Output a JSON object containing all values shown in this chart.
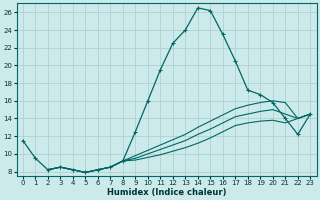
{
  "xlabel": "Humidex (Indice chaleur)",
  "bg_color": "#cceaea",
  "grid_color": "#aacccc",
  "line_color": "#006666",
  "xlim": [
    -0.5,
    23.5
  ],
  "ylim": [
    7.5,
    27
  ],
  "xticks": [
    0,
    1,
    2,
    3,
    4,
    5,
    6,
    7,
    8,
    9,
    10,
    11,
    12,
    13,
    14,
    15,
    16,
    17,
    18,
    19,
    20,
    21,
    22,
    23
  ],
  "yticks": [
    8,
    10,
    12,
    14,
    16,
    18,
    20,
    22,
    24,
    26
  ],
  "main_curve_x": [
    0,
    1,
    2,
    3,
    4,
    5,
    6,
    7,
    8,
    9,
    10,
    11,
    12,
    13,
    14,
    15,
    16,
    17,
    18,
    19,
    20,
    21,
    22,
    23
  ],
  "main_curve_y": [
    11.5,
    9.5,
    8.2,
    8.5,
    8.2,
    7.9,
    8.2,
    8.5,
    9.2,
    12.5,
    16.0,
    19.5,
    22.5,
    24.0,
    26.5,
    26.2,
    23.5,
    20.5,
    17.2,
    16.7,
    15.8,
    14.0,
    12.2,
    14.5
  ],
  "line2_x": [
    2,
    3,
    4,
    5,
    6,
    7,
    8,
    9,
    10,
    11,
    12,
    13,
    14,
    15,
    16,
    17,
    18,
    19,
    20,
    21,
    22,
    23
  ],
  "line2_y": [
    8.2,
    8.5,
    8.2,
    7.9,
    8.2,
    8.5,
    9.2,
    9.8,
    10.4,
    11.0,
    11.6,
    12.2,
    13.0,
    13.7,
    14.4,
    15.1,
    15.5,
    15.8,
    16.0,
    15.8,
    14.0,
    14.5
  ],
  "line3_x": [
    2,
    3,
    4,
    5,
    6,
    7,
    8,
    9,
    10,
    11,
    12,
    13,
    14,
    15,
    16,
    17,
    18,
    19,
    20,
    21,
    22,
    23
  ],
  "line3_y": [
    8.2,
    8.5,
    8.2,
    7.9,
    8.2,
    8.5,
    9.2,
    9.5,
    10.0,
    10.5,
    11.0,
    11.5,
    12.2,
    12.8,
    13.5,
    14.2,
    14.5,
    14.8,
    15.0,
    14.5,
    14.0,
    14.5
  ],
  "line4_x": [
    2,
    3,
    4,
    5,
    6,
    7,
    8,
    9,
    10,
    11,
    12,
    13,
    14,
    15,
    16,
    17,
    18,
    19,
    20,
    21,
    22,
    23
  ],
  "line4_y": [
    8.2,
    8.5,
    8.2,
    7.9,
    8.2,
    8.5,
    9.2,
    9.3,
    9.6,
    9.9,
    10.3,
    10.7,
    11.2,
    11.8,
    12.5,
    13.2,
    13.5,
    13.7,
    13.8,
    13.5,
    14.0,
    14.5
  ]
}
